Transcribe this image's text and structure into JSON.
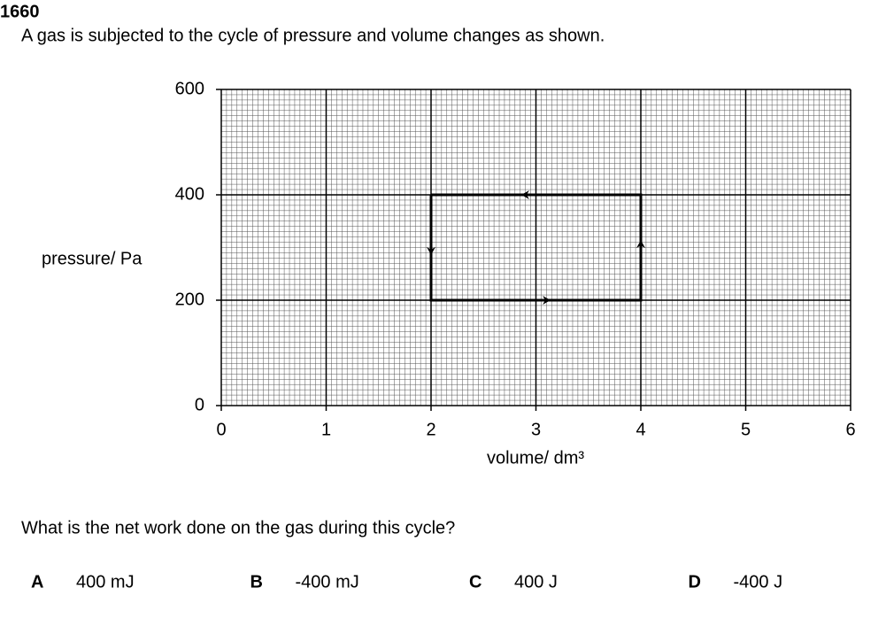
{
  "question_number": "1660",
  "stem": "A gas is subjected to the cycle of pressure and volume changes as shown.",
  "chart_data": {
    "type": "line",
    "x_label": "volume/ dm³",
    "y_label": "pressure/ Pa",
    "x": [
      2,
      2,
      4,
      4,
      2
    ],
    "series": [
      {
        "color": "#000000",
        "values": [
          400,
          200,
          200,
          400,
          400
        ]
      }
    ],
    "xlim": [
      0,
      6
    ],
    "ylim": [
      0,
      600
    ],
    "xticks": [
      0,
      1,
      2,
      3,
      4,
      5,
      6
    ],
    "yticks": [
      0,
      200,
      400,
      600
    ],
    "grid": true
  },
  "question": "What is the net work done on the gas during this cycle?",
  "options": [
    {
      "letter": "A",
      "text": "400 mJ"
    },
    {
      "letter": "B",
      "text": "-400 mJ"
    },
    {
      "letter": "C",
      "text": "400 J"
    },
    {
      "letter": "D",
      "text": "-400 J"
    }
  ]
}
